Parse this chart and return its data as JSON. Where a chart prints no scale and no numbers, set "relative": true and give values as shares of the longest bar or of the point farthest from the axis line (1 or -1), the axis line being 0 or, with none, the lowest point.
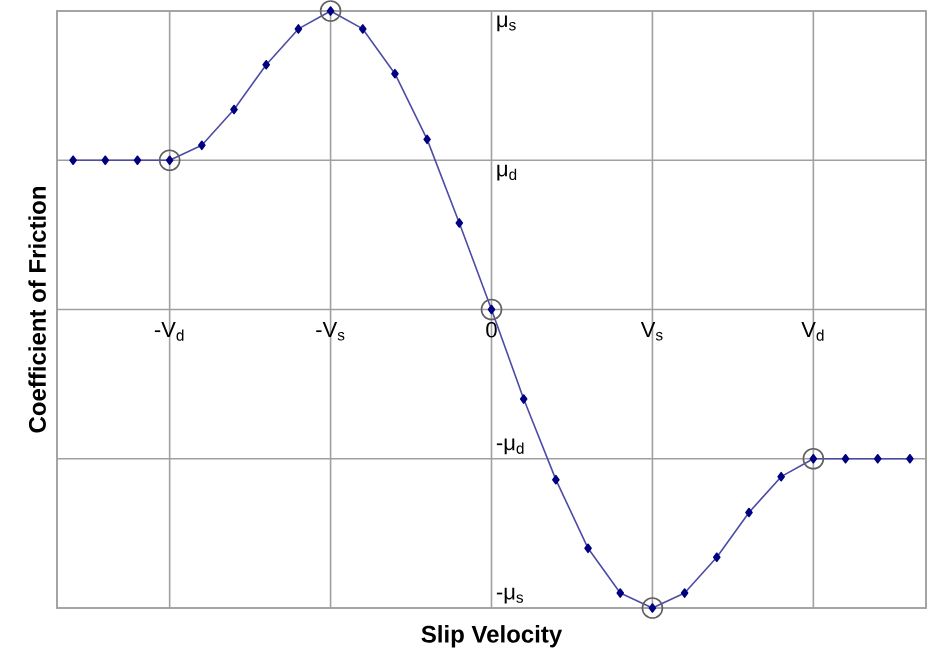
{
  "chart_data": {
    "type": "line",
    "xlabel": "Slip Velocity",
    "ylabel": "Coefficient of Friction",
    "relative": true,
    "categories": [
      null,
      null,
      null,
      "-V$_{d}$",
      null,
      null,
      null,
      null,
      "-V$_{s}$",
      null,
      null,
      null,
      null,
      "0",
      null,
      null,
      null,
      null,
      "V$_{s}$",
      null,
      null,
      null,
      null,
      "V$_{d}$",
      null,
      null,
      null
    ],
    "ref_lines": [
      {
        "axis": "y",
        "value": 0.5,
        "label": "μ$_{d}$",
        "color": "#a0a0a0"
      },
      {
        "axis": "y",
        "value": 0,
        "color": "#a0a0a0"
      },
      {
        "axis": "y",
        "value": -0.5,
        "label": "-μ$_{d}$",
        "color": "#a0a0a0"
      }
    ],
    "annotations": [
      "μ$_{s}$",
      "-μ$_{s}$"
    ],
    "grid": "x",
    "series": [
      {
        "color": "#000080",
        "marker": "diamond",
        "values": [
          0.5,
          0.5,
          0.5,
          0.5,
          0.55,
          0.67,
          0.82,
          0.94,
          1.0,
          0.94,
          0.79,
          0.57,
          0.29,
          0,
          -0.3,
          -0.57,
          -0.8,
          -0.95,
          -1.0,
          -0.95,
          -0.83,
          -0.68,
          -0.56,
          -0.5,
          -0.5,
          -0.5,
          -0.5
        ]
      },
      {
        "type": "scatter",
        "color": "#606060",
        "marker": "circle",
        "values": [
          null,
          null,
          null,
          0.5,
          null,
          null,
          null,
          null,
          1,
          null,
          null,
          null,
          null,
          0,
          null,
          null,
          null,
          null,
          -1,
          null,
          null,
          null,
          null,
          -0.5,
          null,
          null,
          null
        ]
      }
    ]
  }
}
